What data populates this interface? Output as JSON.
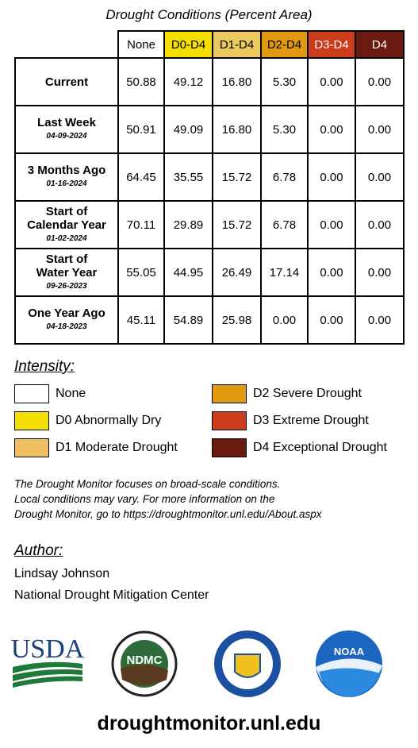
{
  "title": "Drought Conditions (Percent Area)",
  "table": {
    "columns": [
      "None",
      "D0-D4",
      "D1-D4",
      "D2-D4",
      "D3-D4",
      "D4"
    ],
    "rows": [
      {
        "label": [
          "Current"
        ],
        "date": null,
        "cells": [
          "50.88",
          "49.12",
          "16.80",
          "5.30",
          "0.00",
          "0.00"
        ]
      },
      {
        "label": [
          "Last Week"
        ],
        "date": "04-09-2024",
        "cells": [
          "50.91",
          "49.09",
          "16.80",
          "5.30",
          "0.00",
          "0.00"
        ]
      },
      {
        "label": [
          "3 Months Ago"
        ],
        "date": "01-16-2024",
        "cells": [
          "64.45",
          "35.55",
          "15.72",
          "6.78",
          "0.00",
          "0.00"
        ]
      },
      {
        "label": [
          "Start of",
          "Calendar Year"
        ],
        "date": "01-02-2024",
        "cells": [
          "70.11",
          "29.89",
          "15.72",
          "6.78",
          "0.00",
          "0.00"
        ]
      },
      {
        "label": [
          "Start of",
          "Water Year"
        ],
        "date": "09-26-2023",
        "cells": [
          "55.05",
          "44.95",
          "26.49",
          "17.14",
          "0.00",
          "0.00"
        ]
      },
      {
        "label": [
          "One Year Ago"
        ],
        "date": "04-18-2023",
        "cells": [
          "45.11",
          "54.89",
          "25.98",
          "0.00",
          "0.00",
          "0.00"
        ]
      }
    ]
  },
  "intensity": {
    "title": "Intensity:",
    "items": [
      "None",
      "D0 Abnormally Dry",
      "D1 Moderate Drought",
      "D2 Severe Drought",
      "D3 Extreme Drought",
      "D4 Exceptional Drought"
    ]
  },
  "note": [
    "The Drought Monitor focuses on broad-scale conditions.",
    "Local conditions may vary. For more information on the",
    "Drought Monitor, go to https://droughtmonitor.unl.edu/About.aspx"
  ],
  "author": {
    "title": "Author:",
    "name": "Lindsay Johnson",
    "organization": "National Drought Mitigation Center"
  },
  "logos": {
    "usda": "USDA",
    "ndmc": "NDMC",
    "noaa": "NOAA"
  },
  "footer": "droughtmonitor.unl.edu"
}
